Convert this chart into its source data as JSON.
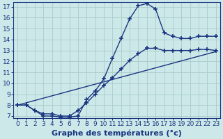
{
  "xlabel": "Graphe des températures (°c)",
  "bg_color": "#cce8e8",
  "grid_color": "#aacccc",
  "line_color": "#1a3580",
  "xlim": [
    -0.5,
    23.5
  ],
  "ylim": [
    6.8,
    17.4
  ],
  "xticks": [
    0,
    1,
    2,
    3,
    4,
    5,
    6,
    7,
    8,
    9,
    10,
    11,
    12,
    13,
    14,
    15,
    16,
    17,
    18,
    19,
    20,
    21,
    22,
    23
  ],
  "yticks": [
    7,
    8,
    9,
    10,
    11,
    12,
    13,
    14,
    15,
    16,
    17
  ],
  "line1_x": [
    0,
    1,
    2,
    3,
    4,
    5,
    6,
    7,
    8,
    9,
    10,
    11,
    12,
    13,
    14,
    15,
    16,
    17,
    18,
    19,
    20,
    21,
    22,
    23
  ],
  "line1_y": [
    8.0,
    8.0,
    7.5,
    7.0,
    7.0,
    6.9,
    6.9,
    7.0,
    8.5,
    9.3,
    10.4,
    12.3,
    14.1,
    15.9,
    17.1,
    17.3,
    16.8,
    14.6,
    14.3,
    14.1,
    14.1,
    14.3,
    14.3,
    14.3
  ],
  "line2_x": [
    0,
    1,
    2,
    3,
    4,
    5,
    6,
    7,
    8,
    9,
    10,
    11,
    12,
    13,
    14,
    15,
    16,
    17,
    18,
    19,
    20,
    21,
    22,
    23
  ],
  "line2_y": [
    8.0,
    8.0,
    7.5,
    7.2,
    7.2,
    7.0,
    7.0,
    7.5,
    8.2,
    9.0,
    9.8,
    10.5,
    11.3,
    12.1,
    12.7,
    13.2,
    13.2,
    13.0,
    13.0,
    13.0,
    13.0,
    13.1,
    13.1,
    13.0
  ],
  "line3_x": [
    0,
    23
  ],
  "line3_y": [
    8.0,
    12.9
  ],
  "marker": "+",
  "markersize": 4,
  "markeredgewidth": 1.2,
  "linewidth": 1.0,
  "xlabel_fontsize": 8,
  "xlabel_fontweight": "bold",
  "tick_fontsize": 6.5
}
